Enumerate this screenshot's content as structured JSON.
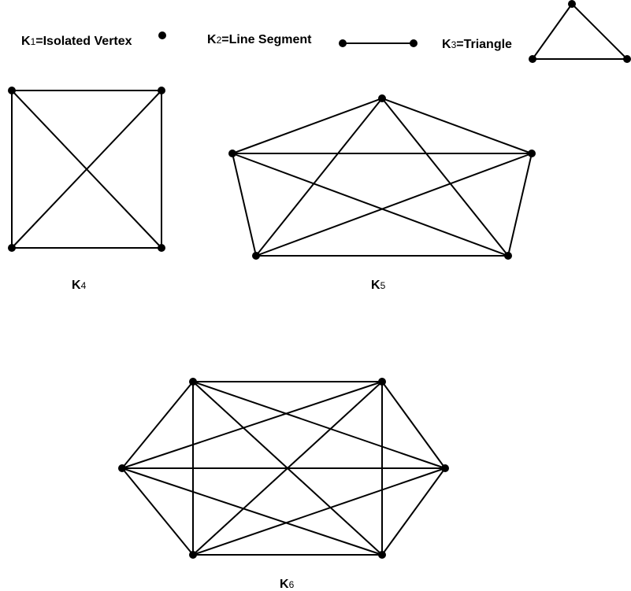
{
  "colors": {
    "stroke": "#000000",
    "vertex": "#000000",
    "background": "#ffffff"
  },
  "labels": {
    "k1": {
      "letter": "K",
      "sub": "1",
      "text": "=Isolated Vertex"
    },
    "k2": {
      "letter": "K",
      "sub": "2",
      "text": "=Line Segment"
    },
    "k3": {
      "letter": "K",
      "sub": "3",
      "text": "=Triangle"
    },
    "k4": {
      "letter": "K",
      "sub": "4"
    },
    "k5": {
      "letter": "K",
      "sub": "5"
    },
    "k6": {
      "letter": "K",
      "sub": "6"
    }
  },
  "graphs": [
    {
      "id": "k1",
      "n": 1
    },
    {
      "id": "k2",
      "n": 2
    },
    {
      "id": "k3",
      "n": 3
    },
    {
      "id": "k4",
      "n": 4
    },
    {
      "id": "k5",
      "n": 5
    },
    {
      "id": "k6",
      "n": 6
    }
  ]
}
